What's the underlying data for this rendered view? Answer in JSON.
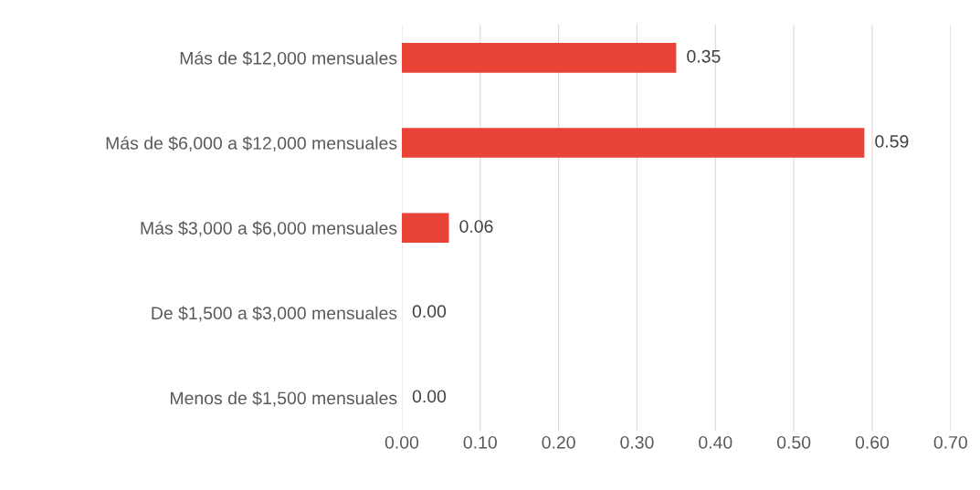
{
  "chart_data": {
    "type": "bar",
    "orientation": "horizontal",
    "categories": [
      "Más de $12,000 mensuales",
      "Más de $6,000 a $12,000 mensuales",
      "Más $3,000 a $6,000 mensuales",
      "De $1,500 a $3,000 mensuales",
      "Menos de $1,500 mensuales"
    ],
    "values": [
      0.35,
      0.59,
      0.06,
      0.0,
      0.0
    ],
    "color": "#e94236",
    "value_labels": [
      "0.35",
      "0.59",
      "0.06",
      "0.00",
      "0.00"
    ],
    "xlim": [
      0,
      0.7
    ],
    "xticks": [
      {
        "value": 0,
        "label": "0.00"
      },
      {
        "value": 0.1,
        "label": "0.10"
      },
      {
        "value": 0.2,
        "label": "0.20"
      },
      {
        "value": 0.3,
        "label": "0.30"
      },
      {
        "value": 0.4,
        "label": "0.40"
      },
      {
        "value": 0.5,
        "label": "0.50"
      },
      {
        "value": 0.6,
        "label": "0.60"
      },
      {
        "value": 0.7,
        "label": "0.70"
      }
    ],
    "grid": "x"
  }
}
